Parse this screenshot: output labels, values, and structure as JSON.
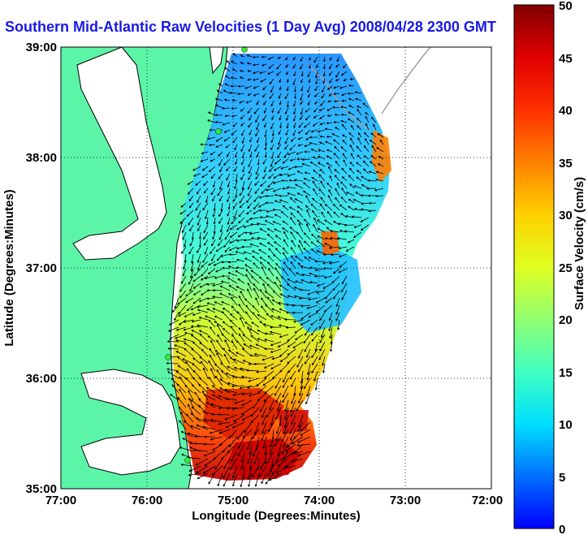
{
  "title": "Southern Mid-Atlantic Raw Velocities (1 Day Avg) 2008/04/28 2300 GMT",
  "x_axis": {
    "label": "Longitude (Degrees:Minutes)",
    "ticks": [
      "77:00",
      "76:00",
      "75:00",
      "74:00",
      "73:00",
      "72:00"
    ]
  },
  "y_axis": {
    "label": "Latitude (Degrees:Minutes)",
    "ticks": [
      "39:00",
      "38:00",
      "37:00",
      "36:00",
      "35:00"
    ]
  },
  "colorbar": {
    "label": "Surface Velocity (cm/s)",
    "ticks": [
      "50",
      "45",
      "40",
      "35",
      "30",
      "25",
      "20",
      "15",
      "10",
      "5",
      "0"
    ],
    "min": 0,
    "max": 50
  },
  "colors": {
    "land": "#5cf5a8",
    "title": "#1a1ae6",
    "station": "#33ee33"
  }
}
